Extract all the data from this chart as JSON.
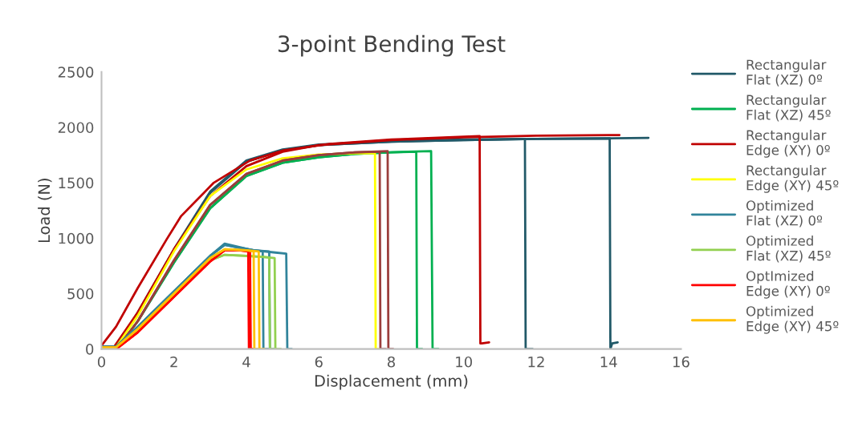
{
  "chart_data": {
    "type": "line",
    "title": "3-point Bending Test",
    "xlabel": "Displacement (mm)",
    "ylabel": "Load (N)",
    "xlim": [
      0,
      16
    ],
    "xticks": [
      0,
      2,
      4,
      6,
      8,
      10,
      12,
      14,
      16
    ],
    "ylim": [
      0,
      2500
    ],
    "yticks": [
      0,
      500,
      1000,
      1500,
      2000,
      2500
    ],
    "grid": false,
    "legend": "right",
    "marker": "none",
    "line_style": "solid",
    "series": [
      {
        "name": "Rectangular\nFlat (XZ) 0º",
        "color": "#215968",
        "x": [
          0,
          0.4,
          1,
          2,
          3,
          4,
          5,
          6,
          8,
          10,
          11.69,
          11.71,
          11.9
        ],
        "values": [
          20,
          20,
          330,
          900,
          1420,
          1700,
          1800,
          1845,
          1875,
          1890,
          1895,
          0,
          0
        ]
      },
      {
        "color": "#215968",
        "x": [
          0,
          0.4,
          1,
          2,
          3,
          4,
          5,
          6,
          8,
          10,
          12,
          14.03,
          14.05,
          14.1,
          14.25
        ],
        "values": [
          20,
          20,
          320,
          890,
          1410,
          1690,
          1795,
          1840,
          1870,
          1885,
          1895,
          1900,
          0,
          50,
          60
        ]
      },
      {
        "color": "#215968",
        "x": [
          0,
          0.4,
          1,
          2,
          3,
          4,
          5,
          6,
          8,
          10,
          12,
          14,
          15.1
        ],
        "values": [
          20,
          20,
          320,
          890,
          1410,
          1690,
          1795,
          1840,
          1870,
          1885,
          1895,
          1900,
          1905
        ]
      },
      {
        "name": "Rectangular\nFlat (XZ) 45º",
        "color": "#00b050",
        "x": [
          0,
          0.45,
          1,
          2,
          3,
          4,
          5,
          6,
          7,
          8,
          8.69,
          8.71,
          8.85
        ],
        "values": [
          10,
          10,
          250,
          780,
          1270,
          1560,
          1680,
          1730,
          1760,
          1775,
          1780,
          0,
          0
        ]
      },
      {
        "color": "#00b050",
        "x": [
          0,
          0.45,
          1,
          2,
          3,
          4,
          5,
          6,
          7,
          8,
          9.1,
          9.14,
          9.3
        ],
        "values": [
          10,
          10,
          250,
          780,
          1270,
          1560,
          1680,
          1730,
          1760,
          1775,
          1785,
          0,
          0
        ]
      },
      {
        "name": "Rectangular\nEdge (XY) 0º",
        "color": "#c00000",
        "x": [
          0,
          0.4,
          1,
          1.8,
          2.2,
          3.1,
          4.1,
          5,
          6.3,
          8,
          10,
          10.44,
          10.46,
          10.5,
          10.7
        ],
        "values": [
          30,
          200,
          550,
          990,
          1200,
          1500,
          1700,
          1790,
          1850,
          1890,
          1915,
          1920,
          50,
          50,
          60
        ]
      },
      {
        "color": "#c00000",
        "x": [
          0,
          0.35,
          1,
          2,
          3,
          4,
          5,
          6,
          8,
          10,
          12,
          14,
          14.3
        ],
        "values": [
          20,
          20,
          330,
          900,
          1380,
          1650,
          1780,
          1840,
          1885,
          1910,
          1925,
          1930,
          1930
        ]
      },
      {
        "name": "Rectangular\nEdge (XY) 45º",
        "color": "#ffff00",
        "x": [
          0,
          0.4,
          1,
          2,
          3,
          4,
          5,
          6,
          7,
          7.55,
          7.57,
          7.65
        ],
        "values": [
          15,
          15,
          300,
          880,
          1380,
          1620,
          1720,
          1755,
          1765,
          1765,
          0,
          0
        ]
      },
      {
        "color": "#9b3d3b",
        "x": [
          0,
          0.45,
          1,
          2,
          3,
          4,
          5,
          6,
          7,
          7.68,
          7.7,
          7.85
        ],
        "values": [
          15,
          15,
          250,
          800,
          1300,
          1580,
          1700,
          1750,
          1775,
          1780,
          0,
          0
        ]
      },
      {
        "color": "#9b3d3b",
        "x": [
          0,
          0.45,
          1,
          2,
          3,
          4,
          5,
          6,
          7,
          7.9,
          7.92,
          8.05
        ],
        "values": [
          15,
          15,
          250,
          800,
          1300,
          1580,
          1700,
          1750,
          1775,
          1785,
          0,
          0
        ]
      },
      {
        "name": "Optimized\nFlat (XZ) 0º",
        "color": "#31849b",
        "x": [
          0,
          0.4,
          1,
          2,
          3,
          3.4,
          3.8,
          4.2,
          4.45,
          4.47,
          4.6
        ],
        "values": [
          20,
          20,
          200,
          520,
          840,
          950,
          920,
          890,
          880,
          0,
          0
        ]
      },
      {
        "color": "#31849b",
        "x": [
          0,
          0.4,
          1,
          2,
          3,
          3.4,
          3.8,
          4.2,
          4.63,
          4.65,
          4.8
        ],
        "values": [
          20,
          20,
          200,
          520,
          840,
          940,
          915,
          890,
          880,
          0,
          0
        ]
      },
      {
        "color": "#31849b",
        "x": [
          0,
          0.4,
          1,
          2,
          3,
          3.4,
          3.8,
          4.2,
          4.8,
          5.1,
          5.13,
          5.25
        ],
        "values": [
          20,
          20,
          200,
          520,
          840,
          940,
          915,
          890,
          870,
          860,
          0,
          0
        ]
      },
      {
        "name": "Optimized\nFlat (XZ) 45º",
        "color": "#92d050",
        "x": [
          0,
          0.4,
          1,
          2,
          3,
          3.4,
          4,
          4.5,
          4.78,
          4.8,
          4.95
        ],
        "values": [
          10,
          10,
          170,
          490,
          800,
          850,
          840,
          830,
          820,
          0,
          0
        ]
      },
      {
        "color": "#92d050",
        "x": [
          0,
          0.4,
          1,
          2,
          3,
          3.4,
          4,
          4.5,
          4.63,
          4.65,
          4.8
        ],
        "values": [
          10,
          10,
          170,
          490,
          800,
          850,
          840,
          830,
          825,
          0,
          0
        ]
      },
      {
        "name": "OptImized\nEdge (XY) 0º",
        "color": "#ff0000",
        "x": [
          0,
          0.45,
          1,
          2,
          3,
          3.4,
          3.8,
          4.05,
          4.07,
          4.15
        ],
        "values": [
          10,
          10,
          150,
          470,
          790,
          890,
          890,
          880,
          0,
          0
        ]
      },
      {
        "color": "#ff0000",
        "x": [
          0,
          0.45,
          1,
          2,
          3,
          3.4,
          3.8,
          4.1,
          4.12,
          4.2
        ],
        "values": [
          10,
          10,
          150,
          470,
          790,
          890,
          890,
          880,
          0,
          0
        ]
      },
      {
        "name": "Optimized\nEdge (XY) 45º",
        "color": "#ffc000",
        "x": [
          0,
          0.4,
          1,
          2,
          3,
          3.4,
          4,
          4.2,
          4.22,
          4.35
        ],
        "values": [
          15,
          15,
          180,
          500,
          820,
          900,
          890,
          880,
          0,
          0
        ]
      },
      {
        "color": "#ffc000",
        "x": [
          0,
          0.4,
          1,
          2,
          3,
          3.4,
          4,
          4.34,
          4.36,
          4.5
        ],
        "values": [
          15,
          15,
          180,
          500,
          820,
          900,
          890,
          880,
          0,
          0
        ]
      }
    ]
  }
}
